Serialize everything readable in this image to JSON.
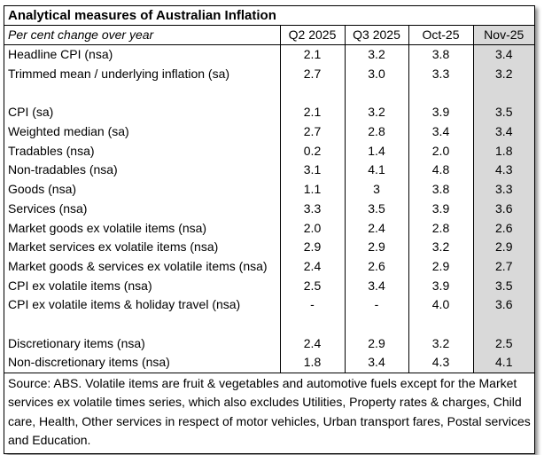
{
  "title": "Analytical measures of Australian Inflation",
  "header": {
    "label": "Per cent change over year",
    "columns": [
      "Q2 2025",
      "Q3 2025",
      "Oct-25",
      "Nov-25"
    ]
  },
  "highlight_color": "#d9d9d9",
  "rows": [
    {
      "label": "Headline CPI (nsa)",
      "values": [
        "2.1",
        "3.2",
        "3.8",
        "3.4"
      ]
    },
    {
      "label": "Trimmed mean / underlying inflation (sa)",
      "values": [
        "2.7",
        "3.0",
        "3.3",
        "3.2"
      ]
    },
    {
      "label": "",
      "values": [
        "",
        "",
        "",
        ""
      ]
    },
    {
      "label": "CPI (sa)",
      "values": [
        "2.1",
        "3.2",
        "3.9",
        "3.5"
      ]
    },
    {
      "label": "Weighted median (sa)",
      "values": [
        "2.7",
        "2.8",
        "3.4",
        "3.4"
      ]
    },
    {
      "label": "Tradables (nsa)",
      "values": [
        "0.2",
        "1.4",
        "2.0",
        "1.8"
      ]
    },
    {
      "label": "Non-tradables (nsa)",
      "values": [
        "3.1",
        "4.1",
        "4.8",
        "4.3"
      ]
    },
    {
      "label": "Goods (nsa)",
      "values": [
        "1.1",
        "3",
        "3.8",
        "3.3"
      ]
    },
    {
      "label": "Services (nsa)",
      "values": [
        "3.3",
        "3.5",
        "3.9",
        "3.6"
      ]
    },
    {
      "label": "Market goods ex volatile items (nsa)",
      "values": [
        "2.0",
        "2.4",
        "2.8",
        "2.6"
      ]
    },
    {
      "label": "Market services ex volatile items (nsa)",
      "values": [
        "2.9",
        "2.9",
        "3.2",
        "2.9"
      ]
    },
    {
      "label": "Market goods & services ex volatile items (nsa)",
      "values": [
        "2.4",
        "2.6",
        "2.9",
        "2.7"
      ]
    },
    {
      "label": "CPI ex volatile items (nsa)",
      "values": [
        "2.5",
        "3.4",
        "3.9",
        "3.5"
      ]
    },
    {
      "label": "CPI ex volatile items & holiday travel (nsa)",
      "values": [
        "-",
        "-",
        "4.0",
        "3.6"
      ]
    },
    {
      "label": "",
      "values": [
        "",
        "",
        "",
        ""
      ]
    },
    {
      "label": "Discretionary items (nsa)",
      "values": [
        "2.4",
        "2.9",
        "3.2",
        "2.5"
      ]
    },
    {
      "label": "Non-discretionary items (nsa)",
      "values": [
        "1.8",
        "3.4",
        "4.3",
        "4.1"
      ]
    }
  ],
  "source": "Source: ABS. Volatile items are fruit & vegetables and automotive fuels except for the Market services ex volatile times series, which also excludes Utilities, Property rates & charges, Child care, Health, Other services in respect of motor vehicles, Urban transport fares, Postal services and Education."
}
